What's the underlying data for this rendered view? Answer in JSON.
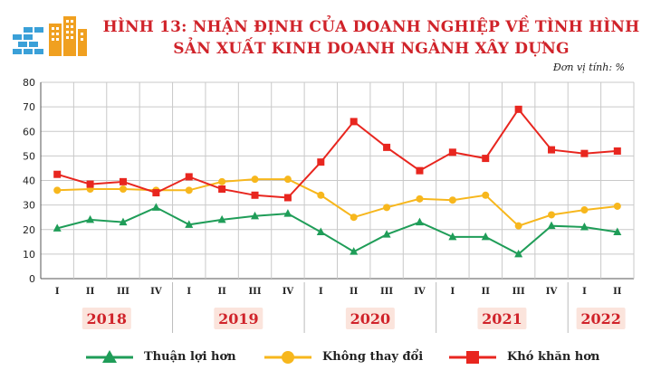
{
  "title_line1": "HÌNH 13: NHẬN ĐỊNH CỦA DOANH NGHIỆP VỀ TÌNH HÌNH",
  "title_line2": "SẢN XUẤT KINH DOANH NGÀNH XÂY DỰNG",
  "unit": "Đơn vị tính: %",
  "colors": {
    "green": "#1f9d58",
    "yellow": "#f7b71d",
    "red": "#e8261f",
    "title": "#d0232a",
    "year_bg": "#fbe4dc",
    "year_text": "#d0232a"
  },
  "chart_data": {
    "type": "line",
    "title": "HÌNH 13: NHẬN ĐỊNH CỦA DOANH NGHIỆP VỀ TÌNH HÌNH SẢN XUẤT KINH DOANH NGÀNH XÂY DỰNG",
    "ylabel": "%",
    "ylim": [
      0,
      80
    ],
    "yticks": [
      0,
      10,
      20,
      30,
      40,
      50,
      60,
      70,
      80
    ],
    "grid": true,
    "categories": [
      "I",
      "II",
      "III",
      "IV",
      "I",
      "II",
      "III",
      "IV",
      "I",
      "II",
      "III",
      "IV",
      "I",
      "II",
      "III",
      "IV",
      "I",
      "II"
    ],
    "year_groups": [
      {
        "label": "2018",
        "start": 0,
        "count": 4
      },
      {
        "label": "2019",
        "start": 4,
        "count": 4
      },
      {
        "label": "2020",
        "start": 8,
        "count": 4
      },
      {
        "label": "2021",
        "start": 12,
        "count": 4
      },
      {
        "label": "2022",
        "start": 16,
        "count": 2
      }
    ],
    "series": [
      {
        "name": "Thuận lợi hơn",
        "marker": "triangle",
        "color": "#1f9d58",
        "values": [
          20.5,
          24,
          23,
          29,
          22,
          24,
          25.5,
          26.5,
          19,
          11,
          18,
          23,
          17,
          17,
          10,
          21.5,
          21,
          19
        ]
      },
      {
        "name": "Không thay đổi",
        "marker": "circle",
        "color": "#f7b71d",
        "values": [
          36,
          36.5,
          36.5,
          36,
          36,
          39.5,
          40.5,
          40.5,
          34,
          25,
          29,
          32.5,
          32,
          34,
          21.5,
          26,
          28,
          29.5
        ]
      },
      {
        "name": "Khó khăn hơn",
        "marker": "square",
        "color": "#e8261f",
        "values": [
          42.5,
          38.5,
          39.5,
          35,
          41.5,
          36.5,
          34,
          33,
          47.5,
          64,
          53.5,
          44,
          51.5,
          49,
          69,
          52.5,
          51,
          52
        ]
      }
    ],
    "legend_position": "bottom"
  }
}
